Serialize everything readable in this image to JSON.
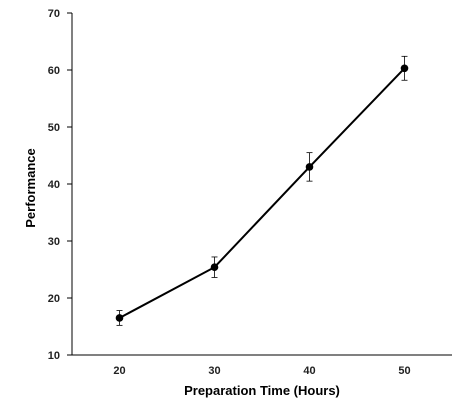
{
  "chart_data": {
    "type": "line",
    "title": "",
    "xlabel": "Preparation Time (Hours)",
    "ylabel": "Performance",
    "x": [
      20,
      30,
      40,
      50
    ],
    "xlim": [
      15,
      55
    ],
    "ylim": [
      10,
      70
    ],
    "xticks": [
      20,
      30,
      40,
      50
    ],
    "yticks": [
      10,
      20,
      30,
      40,
      50,
      60,
      70
    ],
    "grid": false,
    "legend": "none",
    "series": [
      {
        "values": [
          16.5,
          25.4,
          43.0,
          60.3
        ],
        "error": [
          1.3,
          1.8,
          2.5,
          2.1
        ],
        "color": "#000000"
      }
    ]
  }
}
